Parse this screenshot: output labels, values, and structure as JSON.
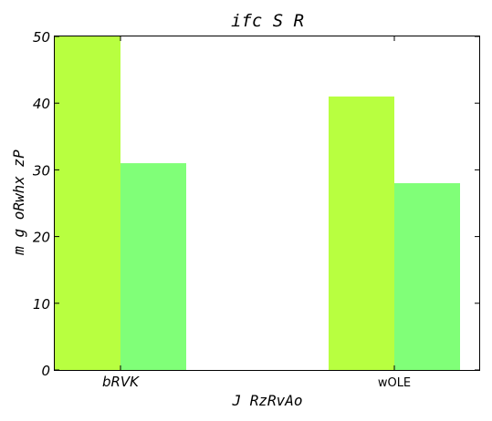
{
  "chart_data": {
    "type": "bar",
    "title": "ifc S R",
    "xlabel": "J RzRvAo",
    "ylabel": "m g oRwhx zP",
    "categories": [
      "bRVK",
      "wOLE"
    ],
    "series": [
      {
        "values": [
          50,
          41
        ],
        "color": "#b8ff40"
      },
      {
        "values": [
          31,
          28
        ],
        "color": "#80ff78"
      }
    ],
    "ylim": [
      0,
      50
    ],
    "yticks": [
      0,
      10,
      20,
      30,
      40,
      50
    ],
    "grid": false,
    "legend": "none"
  }
}
